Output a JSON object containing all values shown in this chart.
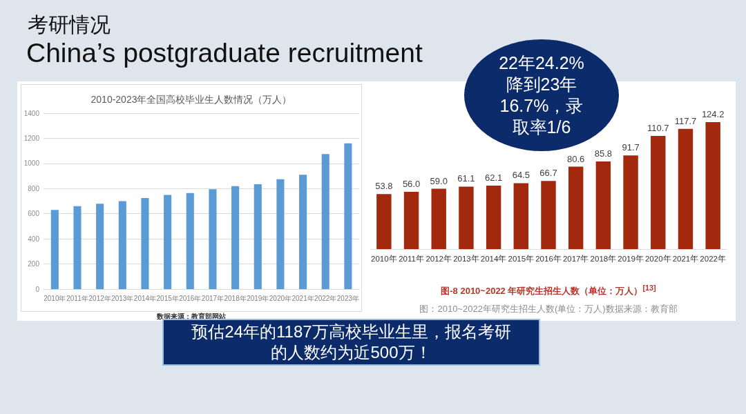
{
  "chart_data": [
    {
      "type": "other",
      "title": "考研情况",
      "subtitle": "China’s postgraduate recruitment",
      "annotations": [
        "22年24.2%降到23年16.7%，录取率1/6",
        "预估24年的1187万高校毕业生里，报名考研的人数约为近500万！"
      ]
    },
    {
      "type": "bar",
      "title": "2010-2023年全国高校毕业生人数情况（万人）",
      "categories": [
        "2010年",
        "2011年",
        "2012年",
        "2013年",
        "2014年",
        "2015年",
        "2016年",
        "2017年",
        "2018年",
        "2019年",
        "2020年",
        "2021年",
        "2022年",
        "2023年"
      ],
      "values": [
        630,
        660,
        680,
        700,
        725,
        750,
        765,
        795,
        820,
        835,
        875,
        910,
        1075,
        1160
      ],
      "color": "#5b9bd5",
      "ylim": [
        0,
        1400
      ],
      "yticks": [
        0,
        200,
        400,
        600,
        800,
        1000,
        1200,
        1400
      ],
      "grid": "y",
      "annotations": [
        "数据来源：教育部网站"
      ]
    },
    {
      "type": "bar",
      "title": "图-8 2010~2022 年研究生招生人数（单位：万人）$^{[13]}$",
      "categories": [
        "2010年",
        "2011年",
        "2012年",
        "2013年",
        "2014年",
        "2015年",
        "2016年",
        "2017年",
        "2018年",
        "2019年",
        "2020年",
        "2021年",
        "2022年"
      ],
      "values": [
        53.8,
        56.0,
        59.0,
        61.1,
        62.1,
        64.5,
        66.7,
        80.6,
        85.8,
        91.7,
        110.7,
        117.7,
        124.2
      ],
      "value_labels": [
        "53.8",
        "56.0",
        "59.0",
        "61.1",
        "62.1",
        "64.5",
        "66.7",
        "80.6",
        "85.8",
        "91.7",
        "110.7",
        "117.7",
        "124.2"
      ],
      "color": "#a2290e",
      "tick_labels": "x",
      "annotations": [
        "图：2010~2022年研究生招生人数(单位：万人)数据来源：教育部"
      ]
    }
  ]
}
